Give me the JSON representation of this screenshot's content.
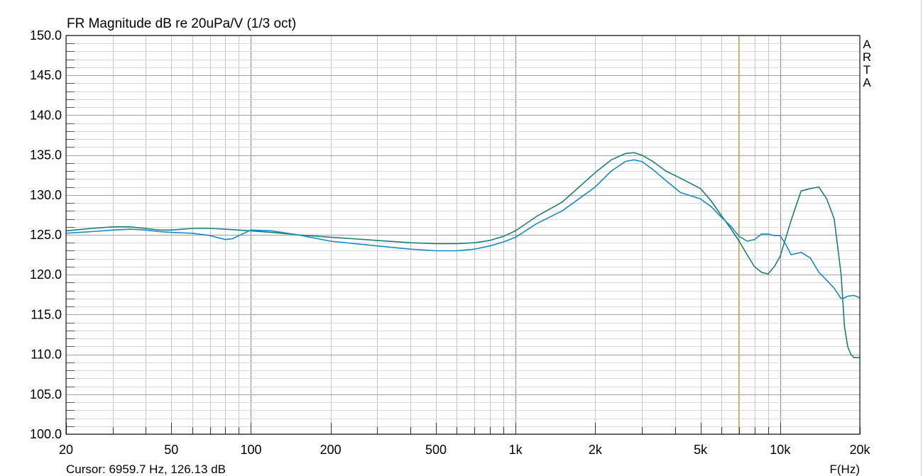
{
  "chart_data": {
    "type": "line",
    "title": "FR Magnitude dB re 20uPa/V (1/3 oct)",
    "xlabel": "F(Hz)",
    "ylabel": "",
    "x_scale": "log",
    "xlim": [
      20,
      20000
    ],
    "ylim": [
      100,
      150
    ],
    "x_ticks": [
      20,
      50,
      100,
      200,
      500,
      1000,
      2000,
      5000,
      10000,
      20000
    ],
    "x_tick_labels": [
      "20",
      "50",
      "100",
      "200",
      "500",
      "1k",
      "2k",
      "5k",
      "10k",
      "20k"
    ],
    "y_ticks": [
      100,
      105,
      110,
      115,
      120,
      125,
      130,
      135,
      140,
      145,
      150
    ],
    "y_tick_labels": [
      "100.0",
      "105.0",
      "110.0",
      "115.0",
      "120.0",
      "125.0",
      "130.0",
      "135.0",
      "140.0",
      "145.0",
      "150.0"
    ],
    "grid": true,
    "brand": "ARTA",
    "cursor_text": "Cursor: 6959.7 Hz, 126.13 dB",
    "cursor_x": 6959.7,
    "colors": {
      "cursor": "#d4a032",
      "grid_major": "#a0a0a0",
      "grid_minor": "#d9d9d9"
    },
    "series": [
      {
        "color": "#1f7d74",
        "x": [
          20,
          25,
          30,
          35,
          40,
          45,
          50,
          60,
          70,
          80,
          90,
          100,
          120,
          150,
          200,
          300,
          400,
          500,
          600,
          700,
          800,
          900,
          1000,
          1200,
          1500,
          1700,
          2000,
          2300,
          2600,
          2800,
          3000,
          3300,
          3700,
          4200,
          5000,
          5500,
          6000,
          6500,
          7000,
          7500,
          8000,
          8500,
          9000,
          9500,
          10000,
          11000,
          12000,
          13000,
          14000,
          15000,
          16000,
          17000,
          17500,
          18000,
          18500,
          19000,
          20000
        ],
        "y": [
          125.5,
          125.8,
          126.0,
          126.0,
          125.8,
          125.6,
          125.6,
          125.8,
          125.8,
          125.7,
          125.6,
          125.5,
          125.3,
          125.0,
          124.7,
          124.3,
          124.0,
          123.9,
          123.9,
          124.0,
          124.3,
          124.8,
          125.5,
          127.3,
          129.1,
          130.7,
          132.8,
          134.4,
          135.2,
          135.3,
          135.0,
          134.2,
          133.0,
          132.1,
          130.8,
          129.2,
          127.4,
          125.8,
          124.2,
          122.5,
          121.0,
          120.3,
          120.1,
          121.0,
          122.3,
          126.8,
          130.5,
          130.8,
          131.0,
          129.5,
          127.0,
          120.0,
          113.5,
          111.0,
          110.0,
          109.6,
          109.6
        ]
      },
      {
        "color": "#1a88c4",
        "x": [
          20,
          25,
          30,
          35,
          40,
          45,
          50,
          60,
          70,
          80,
          85,
          90,
          100,
          120,
          150,
          200,
          300,
          400,
          500,
          600,
          700,
          800,
          900,
          1000,
          1200,
          1500,
          1700,
          2000,
          2300,
          2600,
          2800,
          3000,
          3300,
          3700,
          4200,
          5000,
          5500,
          6000,
          6500,
          7000,
          7500,
          8000,
          8500,
          9000,
          9500,
          10000,
          10500,
          11000,
          12000,
          13000,
          14000,
          15000,
          16000,
          17000,
          17500,
          18000,
          19000,
          20000
        ],
        "y": [
          125.2,
          125.4,
          125.6,
          125.7,
          125.6,
          125.4,
          125.3,
          125.2,
          124.9,
          124.4,
          124.5,
          124.9,
          125.6,
          125.5,
          125.0,
          124.2,
          123.6,
          123.2,
          123.0,
          123.0,
          123.2,
          123.6,
          124.1,
          124.7,
          126.4,
          128.0,
          129.3,
          131.0,
          133.0,
          134.2,
          134.4,
          134.2,
          133.2,
          131.8,
          130.3,
          129.5,
          128.5,
          127.2,
          126.1,
          124.8,
          124.2,
          124.4,
          125.1,
          125.1,
          124.9,
          124.9,
          123.8,
          122.5,
          122.8,
          122.1,
          120.3,
          119.3,
          118.3,
          117.0,
          117.1,
          117.3,
          117.4,
          117.1
        ]
      }
    ]
  }
}
